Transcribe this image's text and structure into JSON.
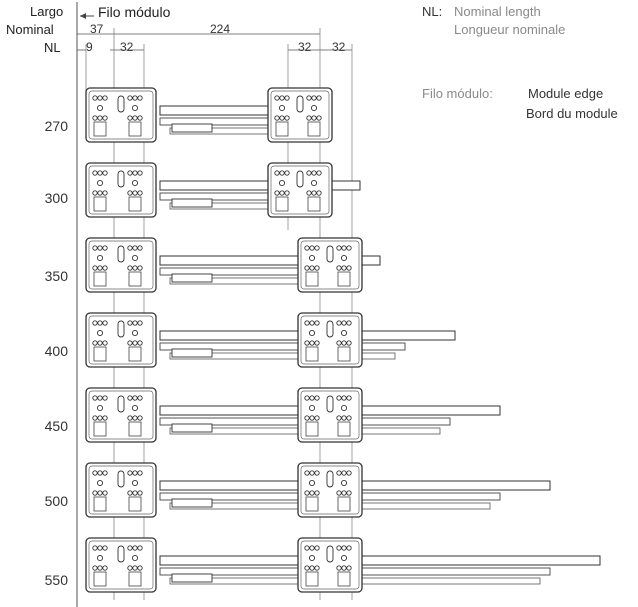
{
  "header": {
    "axis_title_line1": "Largo",
    "axis_title_line2": "Nominal",
    "axis_title_line3": "NL",
    "edge_label": "Filo módulo"
  },
  "dimensions": {
    "d37": "37",
    "d224": "224",
    "d9": "9",
    "d32_left": "32",
    "d32_right_a": "32",
    "d32_right_b": "32"
  },
  "legend": {
    "nl_key": "NL:",
    "nl_en": "Nominal length",
    "nl_fr": "Longueur nominale",
    "edge_key": "Filo módulo:",
    "edge_en": "Module edge",
    "edge_fr": "Bord du module"
  },
  "rows": [
    {
      "nl": "270"
    },
    {
      "nl": "300"
    },
    {
      "nl": "350"
    },
    {
      "nl": "400"
    },
    {
      "nl": "450"
    },
    {
      "nl": "500"
    },
    {
      "nl": "550"
    }
  ]
}
